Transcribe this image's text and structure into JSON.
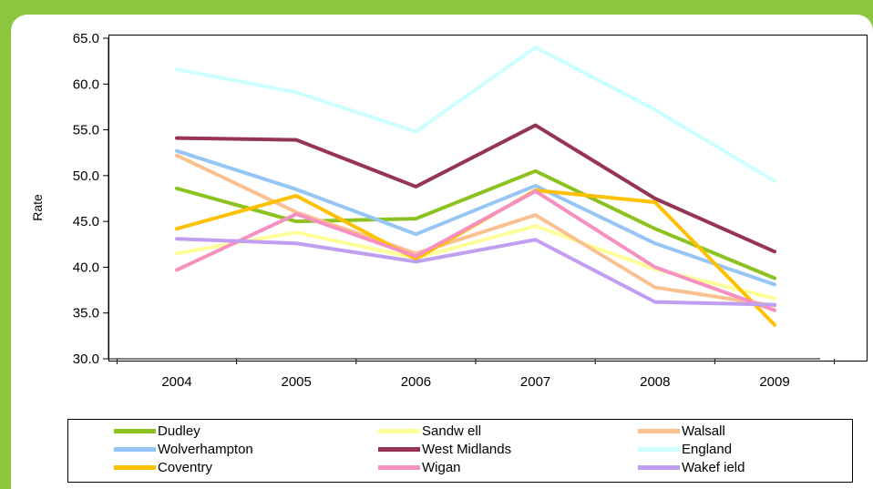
{
  "chart_data": {
    "type": "line",
    "xlabel": "",
    "ylabel": "Rate",
    "ylim": [
      30.0,
      65.0
    ],
    "yticks": [
      "30.0",
      "35.0",
      "40.0",
      "45.0",
      "50.0",
      "55.0",
      "60.0",
      "65.0"
    ],
    "categories": [
      "2004",
      "2005",
      "2006",
      "2007",
      "2008",
      "2009"
    ],
    "grid": false,
    "legend_position": "bottom",
    "series": [
      {
        "name": "Dudley",
        "color": "#8cc21f",
        "values": [
          48.6,
          45.0,
          45.3,
          50.5,
          44.2,
          38.8
        ]
      },
      {
        "name": "Sandw ell",
        "color": "#ffff99",
        "values": [
          41.5,
          43.8,
          41.0,
          44.5,
          39.8,
          36.6
        ]
      },
      {
        "name": "Walsall",
        "color": "#fac090",
        "values": [
          52.2,
          46.0,
          41.5,
          45.7,
          37.8,
          35.8
        ]
      },
      {
        "name": "Wolverhampton",
        "color": "#95c6f5",
        "values": [
          52.7,
          48.5,
          43.6,
          48.9,
          42.6,
          38.1
        ]
      },
      {
        "name": "West Midlands",
        "color": "#953553",
        "values": [
          54.1,
          53.9,
          48.8,
          55.5,
          47.5,
          41.7
        ]
      },
      {
        "name": "England",
        "color": "#ccffff",
        "values": [
          61.6,
          59.1,
          54.8,
          64.0,
          57.2,
          49.4
        ]
      },
      {
        "name": "Coventry",
        "color": "#ffc000",
        "values": [
          44.2,
          47.8,
          40.9,
          48.4,
          47.1,
          33.7
        ]
      },
      {
        "name": "Wigan",
        "color": "#f590c0",
        "values": [
          39.7,
          45.8,
          41.2,
          48.3,
          40.0,
          35.3
        ]
      },
      {
        "name": "Wakef ield",
        "color": "#c09ff0",
        "values": [
          43.1,
          42.6,
          40.6,
          43.0,
          36.2,
          35.9
        ]
      }
    ]
  }
}
